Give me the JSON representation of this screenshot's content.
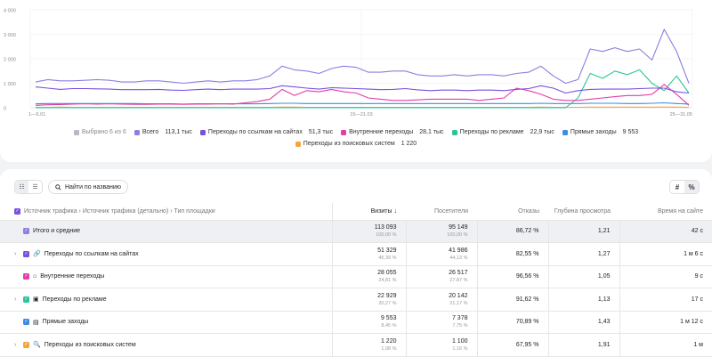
{
  "chart": {
    "y_ticks": [
      "4 000",
      "3 000",
      "2 000",
      "1 000",
      "0"
    ],
    "x_ticks": [
      "1—5.01",
      "15—21.03",
      "25—31.05"
    ],
    "legend": [
      {
        "label": "Выбрано 6 из 6",
        "value": "",
        "color": "#b8b8c8",
        "muted": true
      },
      {
        "label": "Всего",
        "value": "113,1 тыс",
        "color": "#8b7fe0"
      },
      {
        "label": "Переходы по ссылкам на сайтах",
        "value": "51,3 тыс",
        "color": "#7b4fe0"
      },
      {
        "label": "Внутренние переходы",
        "value": "28,1 тыс",
        "color": "#e43ca8"
      },
      {
        "label": "Переходы по рекламе",
        "value": "22,9 тыс",
        "color": "#2bc49a"
      },
      {
        "label": "Прямые заходы",
        "value": "9 553",
        "color": "#3a8ce6"
      },
      {
        "label": "Переходы из поисковых систем",
        "value": "1 220",
        "color": "#f3a640"
      }
    ]
  },
  "chart_data": {
    "type": "line",
    "ylim": [
      0,
      4000
    ],
    "x_tick_labels": [
      "1—5.01",
      "15—21.03",
      "25—31.05"
    ],
    "series": [
      {
        "name": "Всего",
        "color": "#8b7fe0",
        "values": [
          1050,
          1150,
          1100,
          1100,
          1120,
          1150,
          1120,
          1050,
          1050,
          1100,
          1100,
          1050,
          1000,
          1050,
          1100,
          1050,
          1100,
          1100,
          1150,
          1300,
          1700,
          1550,
          1500,
          1400,
          1600,
          1700,
          1650,
          1450,
          1450,
          1500,
          1500,
          1350,
          1300,
          1300,
          1350,
          1300,
          1350,
          1350,
          1300,
          1400,
          1450,
          1700,
          1300,
          1000,
          1150,
          2400,
          2300,
          2450,
          2300,
          2400,
          1950,
          3200,
          2300,
          1000
        ]
      },
      {
        "name": "Переходы по ссылкам на сайтах",
        "color": "#7b4fe0",
        "values": [
          850,
          800,
          750,
          780,
          780,
          770,
          760,
          740,
          740,
          740,
          750,
          720,
          710,
          740,
          760,
          740,
          760,
          760,
          760,
          780,
          900,
          850,
          800,
          760,
          820,
          800,
          780,
          760,
          740,
          750,
          780,
          730,
          700,
          720,
          720,
          700,
          720,
          720,
          700,
          750,
          780,
          900,
          800,
          600,
          700,
          750,
          760,
          760,
          760,
          780,
          800,
          800,
          650,
          600
        ]
      },
      {
        "name": "Внутренние переходы",
        "color": "#e43ca8",
        "values": [
          100,
          120,
          130,
          150,
          160,
          150,
          160,
          150,
          140,
          140,
          150,
          150,
          140,
          150,
          150,
          160,
          150,
          200,
          250,
          350,
          750,
          500,
          700,
          650,
          750,
          650,
          600,
          400,
          350,
          300,
          300,
          320,
          350,
          350,
          350,
          350,
          300,
          350,
          400,
          800,
          700,
          550,
          350,
          300,
          300,
          350,
          400,
          450,
          500,
          500,
          550,
          950,
          550,
          100
        ]
      },
      {
        "name": "Переходы по рекламе",
        "color": "#2bc49a",
        "values": [
          0,
          0,
          0,
          0,
          0,
          0,
          0,
          0,
          0,
          0,
          0,
          0,
          0,
          0,
          0,
          0,
          0,
          0,
          0,
          0,
          0,
          0,
          0,
          0,
          0,
          0,
          0,
          0,
          0,
          0,
          0,
          0,
          0,
          0,
          0,
          0,
          0,
          0,
          0,
          0,
          0,
          0,
          0,
          0,
          400,
          1400,
          1200,
          1500,
          1350,
          1550,
          1000,
          700,
          1300,
          600
        ]
      },
      {
        "name": "Прямые заходы",
        "color": "#3a8ce6",
        "values": [
          160,
          170,
          170,
          170,
          170,
          170,
          170,
          170,
          170,
          160,
          160,
          160,
          150,
          160,
          160,
          160,
          160,
          160,
          160,
          170,
          180,
          180,
          170,
          170,
          170,
          170,
          170,
          170,
          170,
          170,
          170,
          170,
          170,
          170,
          170,
          170,
          170,
          170,
          170,
          170,
          170,
          180,
          170,
          170,
          170,
          180,
          180,
          180,
          170,
          170,
          180,
          200,
          170,
          150
        ]
      },
      {
        "name": "Переходы из поисковых систем",
        "color": "#f3a640",
        "values": [
          20,
          20,
          25,
          20,
          20,
          20,
          20,
          20,
          20,
          20,
          20,
          20,
          20,
          20,
          20,
          20,
          20,
          20,
          20,
          20,
          25,
          25,
          20,
          20,
          20,
          20,
          20,
          20,
          20,
          20,
          20,
          20,
          20,
          20,
          20,
          20,
          20,
          20,
          20,
          20,
          20,
          25,
          20,
          20,
          20,
          25,
          25,
          25,
          25,
          25,
          25,
          30,
          25,
          20
        ]
      }
    ]
  },
  "toolbar": {
    "search_label": "Найти по названию",
    "unit_hash": "#",
    "unit_pct": "%"
  },
  "table": {
    "columns": {
      "source": "Источник трафика › Источник трафика (детально) › Тип площадки",
      "visits": "Визиты ↓",
      "visitors": "Посетители",
      "bounces": "Отказы",
      "depth": "Глубина просмотра",
      "time": "Время на сайте"
    },
    "rows": [
      {
        "label": "Итого и средние",
        "expand": "",
        "color": "#8b7fe0",
        "icon": "",
        "visits": "113 093",
        "visits_pct": "100,00 %",
        "visitors": "95 149",
        "visitors_pct": "100,00 %",
        "bounces": "86,72 %",
        "depth": "1,21",
        "time": "42 с"
      },
      {
        "label": "Переходы по ссылкам на сайтах",
        "expand": "›",
        "color": "#7b4fe0",
        "icon": "🔗",
        "visits": "51 329",
        "visits_pct": "45,39 %",
        "visitors": "41 986",
        "visitors_pct": "44,13 %",
        "bounces": "82,55 %",
        "depth": "1,27",
        "time": "1 м 6 с"
      },
      {
        "label": "Внутренние переходы",
        "expand": "",
        "color": "#e43ca8",
        "icon": "⌂",
        "visits": "28 055",
        "visits_pct": "24,81 %",
        "visitors": "26 517",
        "visitors_pct": "27,87 %",
        "bounces": "96,56 %",
        "depth": "1,05",
        "time": "9 с"
      },
      {
        "label": "Переходы по рекламе",
        "expand": "›",
        "color": "#2bc49a",
        "icon": "▣",
        "visits": "22 929",
        "visits_pct": "20,27 %",
        "visitors": "20 142",
        "visitors_pct": "21,17 %",
        "bounces": "91,62 %",
        "depth": "1,13",
        "time": "17 с"
      },
      {
        "label": "Прямые заходы",
        "expand": "",
        "color": "#3a8ce6",
        "icon": "▤",
        "visits": "9 553",
        "visits_pct": "8,45 %",
        "visitors": "7 378",
        "visitors_pct": "7,75 %",
        "bounces": "70,89 %",
        "depth": "1,43",
        "time": "1 м 12 с"
      },
      {
        "label": "Переходы из поисковых систем",
        "expand": "›",
        "color": "#f3a640",
        "icon": "🔍",
        "visits": "1 220",
        "visits_pct": "1,08 %",
        "visitors": "1 100",
        "visitors_pct": "1,16 %",
        "bounces": "67,95 %",
        "depth": "1,91",
        "time": "1 м"
      }
    ]
  }
}
